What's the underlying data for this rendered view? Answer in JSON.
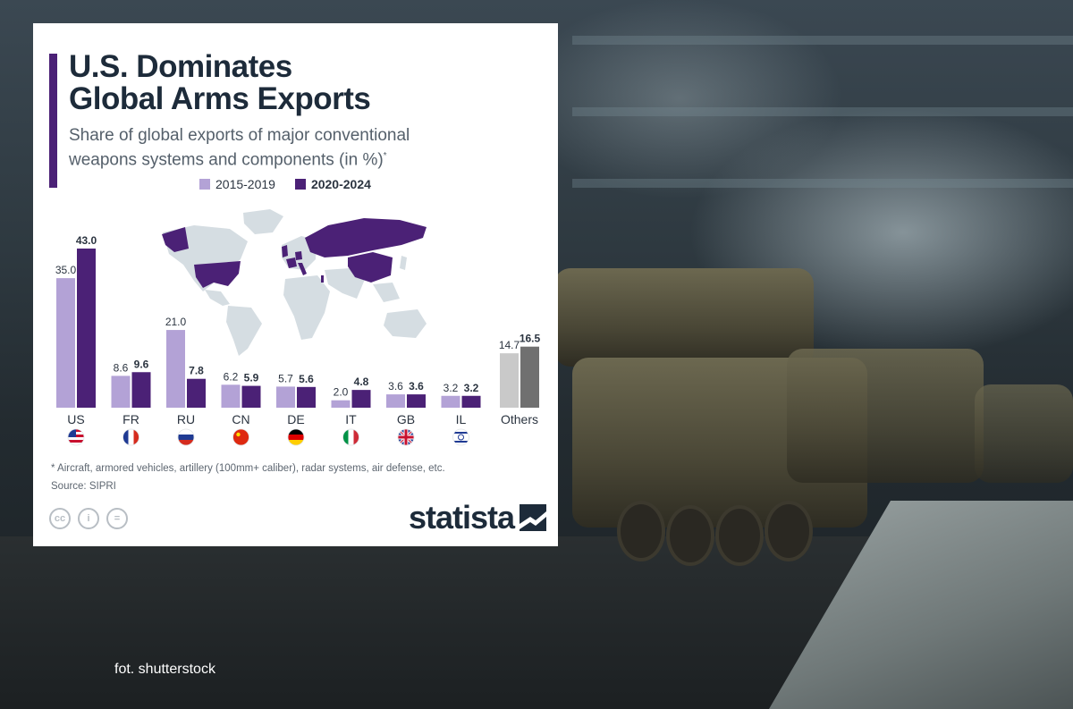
{
  "photo_credit": "fot. shutterstock",
  "infographic": {
    "title_line1": "U.S. Dominates",
    "title_line2": "Global Arms Exports",
    "subtitle_line1": "Share of global exports of major conventional",
    "subtitle_line2": "weapons systems and components (in %)",
    "subtitle_marker": "*",
    "footnote": "* Aircraft, armored vehicles, artillery (100mm+ caliber), radar systems, air defense, etc.",
    "source": "Source: SIPRI",
    "brand": "statista",
    "cc_icons": [
      "cc-icon",
      "attribution-icon",
      "no-derivatives-icon"
    ]
  },
  "chart_data": {
    "type": "bar",
    "categories": [
      "US",
      "FR",
      "RU",
      "CN",
      "DE",
      "IT",
      "GB",
      "IL",
      "Others"
    ],
    "flags": [
      "us-flag-icon",
      "fr-flag-icon",
      "ru-flag-icon",
      "cn-flag-icon",
      "de-flag-icon",
      "it-flag-icon",
      "gb-flag-icon",
      "il-flag-icon",
      ""
    ],
    "series": [
      {
        "name": "2015-2019",
        "values": [
          35.0,
          8.6,
          21.0,
          6.2,
          5.7,
          2.0,
          3.6,
          3.2,
          14.7
        ],
        "labels": [
          "35.0",
          "8.6",
          "21.0",
          "6.2",
          "5.7",
          "2.0",
          "3.6",
          "3.2",
          "14.7"
        ],
        "color": "#b3a2d6",
        "others_color": "#c9c9c9"
      },
      {
        "name": "2020-2024",
        "values": [
          43.0,
          9.6,
          7.8,
          5.9,
          5.6,
          4.8,
          3.6,
          3.2,
          16.5
        ],
        "labels": [
          "43.0",
          "9.6",
          "7.8",
          "5.9",
          "5.6",
          "4.8",
          "3.6",
          "3.2",
          "16.5"
        ],
        "color": "#4b2176",
        "others_color": "#707070"
      }
    ],
    "ylim": [
      0,
      43.0
    ],
    "highlight_color": "#4b2176",
    "map_base_color": "#d5dde2"
  }
}
